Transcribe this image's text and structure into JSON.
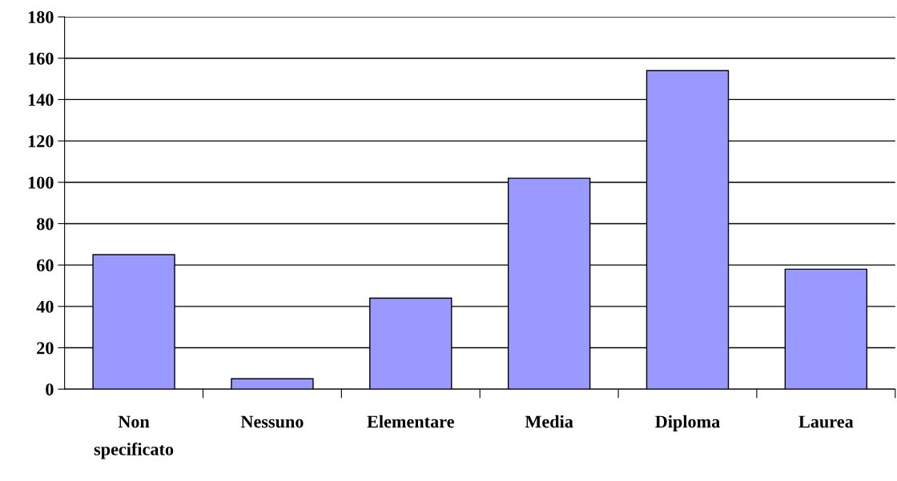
{
  "chart_data": {
    "type": "bar",
    "categories": [
      "Non specificato",
      "Nessuno",
      "Elementare",
      "Media",
      "Diploma",
      "Laurea"
    ],
    "values": [
      65,
      5,
      44,
      102,
      154,
      58
    ],
    "color": "#9999ff",
    "ylim": [
      0,
      180
    ],
    "yticks": [
      0,
      20,
      40,
      60,
      80,
      100,
      120,
      140,
      160,
      180
    ],
    "grid": "y"
  }
}
